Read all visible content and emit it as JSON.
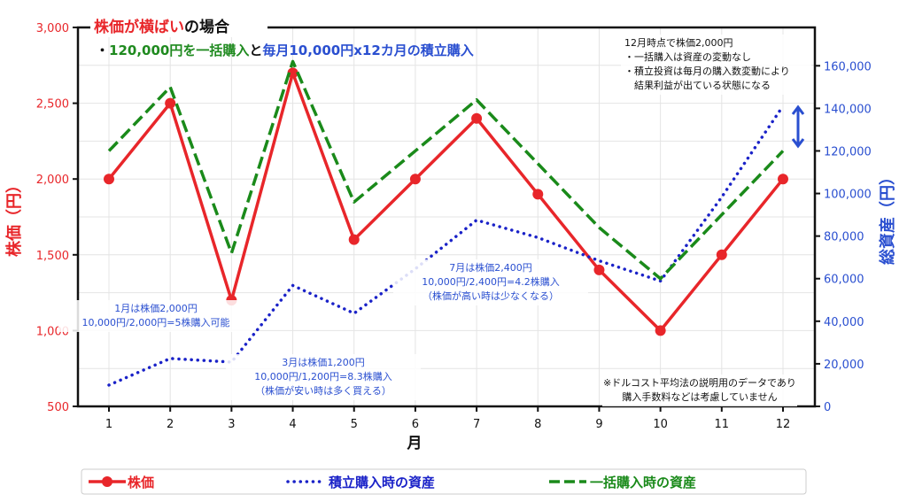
{
  "chart_data": {
    "type": "line",
    "title_parts": [
      {
        "text": "株価が横ばい",
        "color": "#e8262a"
      },
      {
        "text": "の場合",
        "color": "#111111"
      }
    ],
    "subtitle_parts": [
      {
        "text": "・",
        "color": "#111111"
      },
      {
        "text": "120,000円を一括購入",
        "color": "#1f8a1f"
      },
      {
        "text": "と",
        "color": "#111111"
      },
      {
        "text": "毎月10,000円x12カ月の積立購入",
        "color": "#2a4fd0"
      }
    ],
    "xlabel": "月",
    "ylabel_left": "株価（円）",
    "ylabel_right": "総資産（円）",
    "x": [
      1,
      2,
      3,
      4,
      5,
      6,
      7,
      8,
      9,
      10,
      11,
      12
    ],
    "ylim_left": [
      500,
      3000
    ],
    "ylim_right": [
      0,
      178000
    ],
    "yticks_left": [
      "500",
      "1,000",
      "1,500",
      "2,000",
      "2,500",
      "3,000"
    ],
    "yticks_right": [
      "0",
      "20,000",
      "40,000",
      "60,000",
      "80,000",
      "100,000",
      "120,000",
      "140,000",
      "160,000"
    ],
    "grid": true,
    "series": [
      {
        "name": "株価",
        "axis": "left",
        "color": "#e8262a",
        "style": "solid-marker",
        "values": [
          2000,
          2500,
          1200,
          2700,
          1600,
          2000,
          2400,
          1900,
          1400,
          1000,
          1500,
          2000
        ]
      },
      {
        "name": "積立購入時の資産",
        "axis": "right",
        "color": "#1a22c8",
        "style": "dotted",
        "values": [
          10000,
          22500,
          20800,
          56800,
          43700,
          64600,
          87500,
          79300,
          68400,
          58900,
          98300,
          141100
        ]
      },
      {
        "name": "一括購入時の資産",
        "axis": "right",
        "color": "#1a8a1a",
        "style": "dashed",
        "values": [
          120000,
          150000,
          72000,
          162000,
          96000,
          120000,
          144000,
          114000,
          84000,
          60000,
          90000,
          120000
        ]
      }
    ],
    "legend_placement": "bottom",
    "annotations": [
      {
        "lines": [
          "12月時点で株価2,000円",
          "・一括購入は資産の変動なし",
          "・積立投資は毎月の購入数変動により",
          "　結果利益が出ている状態になる"
        ],
        "color": "#111111"
      },
      {
        "lines": [
          "1月は株価2,000円",
          "10,000円/2,000円=5株購入可能"
        ],
        "color": "#2a4fd0"
      },
      {
        "lines": [
          "3月は株価1,200円",
          "10,000円/1,200円=8.3株購入",
          "（株価が安い時は多く買える）"
        ],
        "color": "#2a4fd0"
      },
      {
        "lines": [
          "7月は株価2,400円",
          "10,000円/2,400円=4.2株購入",
          "（株価が高い時は少なくなる）"
        ],
        "color": "#2a4fd0"
      },
      {
        "lines": [
          "※ドルコスト平均法の説明用のデータであり",
          "購入手数料などは考慮していません"
        ],
        "color": "#111111"
      }
    ]
  }
}
